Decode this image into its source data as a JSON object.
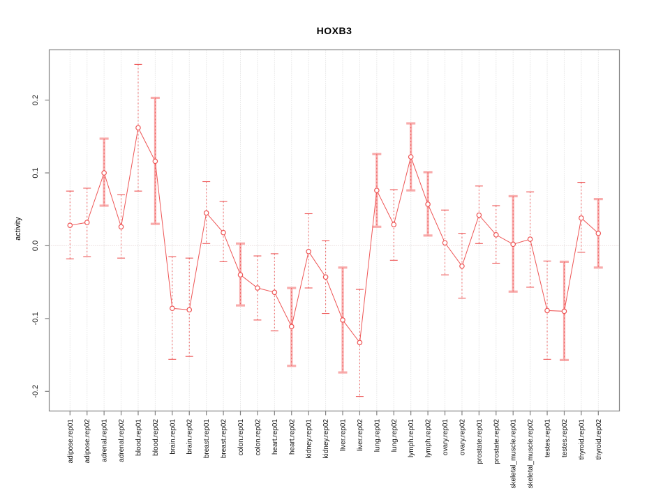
{
  "chart_data": {
    "type": "line",
    "subtype": "points-with-error-bars",
    "title": "HOXB3",
    "xlabel": "",
    "ylabel": "activity",
    "legend": "none",
    "grid": "vertical-dotted-per-category and dotted zero line",
    "ylim": [
      -0.227,
      0.269
    ],
    "yticks": [
      -0.2,
      -0.1,
      0.0,
      0.1,
      0.2
    ],
    "categories": [
      "adipose.rep01",
      "adipose.rep02",
      "adrenal.rep01",
      "adrenal.rep02",
      "blood.rep01",
      "blood.rep02",
      "brain.rep01",
      "brain.rep02",
      "breast.rep01",
      "breast.rep02",
      "colon.rep01",
      "colon.rep02",
      "heart.rep01",
      "heart.rep02",
      "kidney.rep01",
      "kidney.rep02",
      "liver.rep01",
      "liver.rep02",
      "lung.rep01",
      "lung.rep02",
      "lymph.rep01",
      "lymph.rep02",
      "ovary.rep01",
      "ovary.rep02",
      "prostate.rep01",
      "prostate.rep02",
      "skeletal_muscle.rep01",
      "skeletal_muscle.rep02",
      "testes.rep01",
      "testes.rep02",
      "thyroid.rep01",
      "thyroid.rep02"
    ],
    "values": [
      0.028,
      0.032,
      0.1,
      0.026,
      0.162,
      0.116,
      -0.086,
      -0.088,
      0.045,
      0.018,
      -0.04,
      -0.058,
      -0.064,
      -0.111,
      -0.008,
      -0.043,
      -0.102,
      -0.133,
      0.076,
      0.029,
      0.122,
      0.057,
      0.004,
      -0.028,
      0.042,
      0.015,
      0.002,
      0.009,
      -0.089,
      -0.09,
      0.038,
      0.017
    ],
    "error_upper": [
      0.075,
      0.079,
      0.147,
      0.07,
      0.249,
      0.203,
      -0.015,
      -0.017,
      0.088,
      0.061,
      0.003,
      -0.014,
      -0.011,
      -0.058,
      0.044,
      0.007,
      -0.03,
      -0.06,
      0.126,
      0.077,
      0.168,
      0.101,
      0.049,
      0.017,
      0.082,
      0.055,
      0.068,
      0.074,
      -0.021,
      -0.022,
      0.087,
      0.064
    ],
    "error_lower": [
      -0.018,
      -0.015,
      0.055,
      -0.017,
      0.075,
      0.03,
      -0.156,
      -0.152,
      0.003,
      -0.022,
      -0.082,
      -0.102,
      -0.117,
      -0.165,
      -0.058,
      -0.093,
      -0.174,
      -0.207,
      0.026,
      -0.02,
      0.076,
      0.014,
      -0.04,
      -0.072,
      0.003,
      -0.024,
      -0.063,
      -0.057,
      -0.156,
      -0.157,
      -0.009,
      -0.03
    ],
    "thick_bar": [
      false,
      false,
      true,
      false,
      false,
      true,
      false,
      false,
      false,
      false,
      true,
      false,
      false,
      true,
      false,
      false,
      true,
      false,
      true,
      false,
      true,
      true,
      false,
      false,
      false,
      false,
      true,
      false,
      false,
      true,
      false,
      true
    ]
  },
  "colors": {
    "series_red": "#ee5555",
    "errorbar_pink": "#f8abab",
    "gridline": "#d6d6d6",
    "zero_line": "#dcc9c9",
    "frame": "#808080",
    "tick_text": "#111111"
  }
}
